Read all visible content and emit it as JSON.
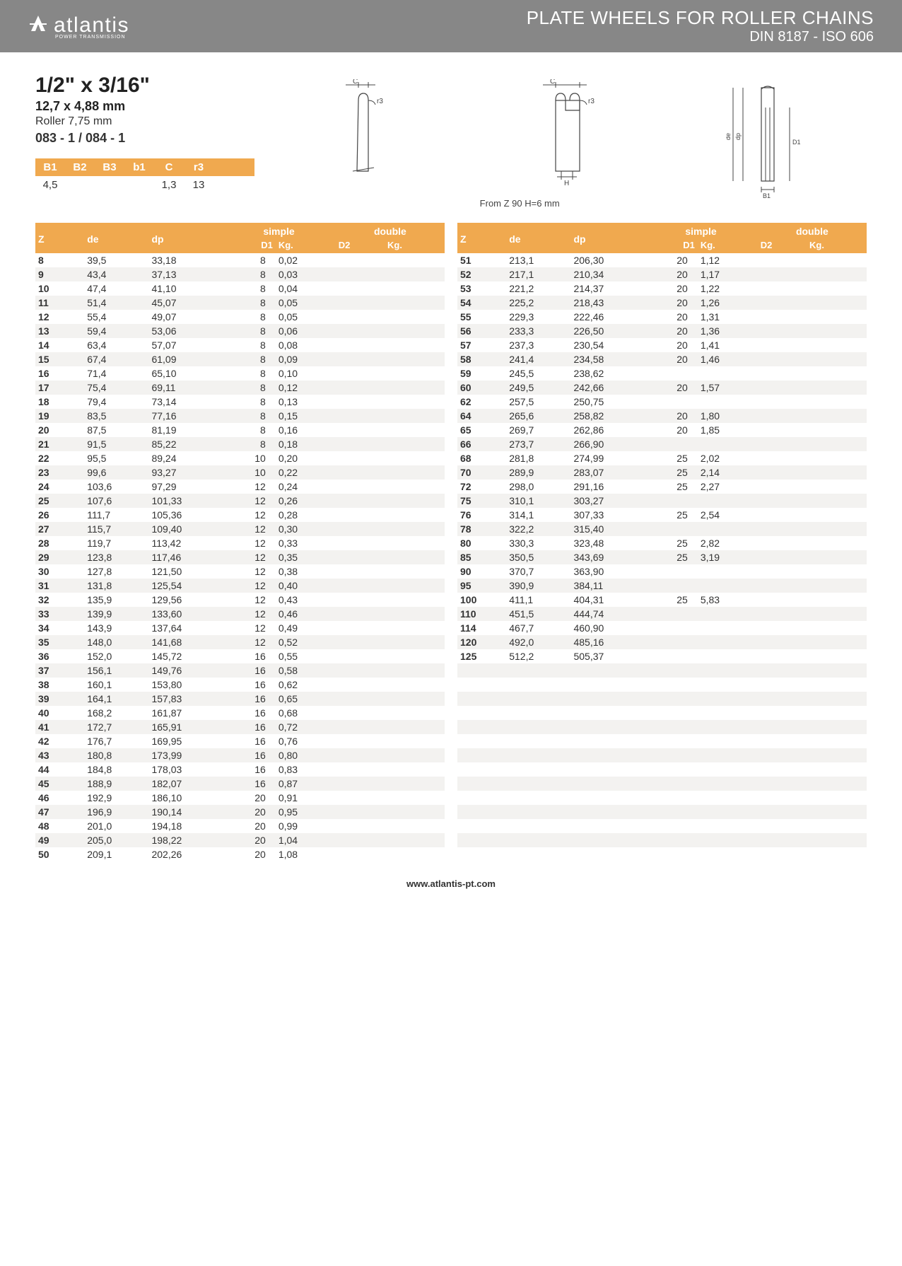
{
  "header": {
    "logo_text": "atlantis",
    "logo_sub": "POWER TRANSMISSION",
    "title_line1": "PLATE WHEELS FOR ROLLER CHAINS",
    "title_line2": "DIN 8187 - ISO 606"
  },
  "product": {
    "title": "1/2\" x 3/16\"",
    "sub1": "12,7 x 4,88 mm",
    "sub2": "Roller 7,75 mm",
    "sub3": "083 - 1 / 084 - 1"
  },
  "params": {
    "headers": [
      "B1",
      "B2",
      "B3",
      "b1",
      "C",
      "r3"
    ],
    "values": [
      "4,5",
      "",
      "",
      "",
      "1,3",
      "13"
    ]
  },
  "diagram_note": "From Z 90 H=6 mm",
  "table_headers": {
    "z": "Z",
    "de": "de",
    "dp": "dp",
    "simple": "simple",
    "double": "double",
    "d1": "D1",
    "kg": "Kg.",
    "d2": "D2",
    "kg2": "Kg."
  },
  "left_rows": [
    {
      "z": "8",
      "de": "39,5",
      "dp": "33,18",
      "d1": "8",
      "kg": "0,02"
    },
    {
      "z": "9",
      "de": "43,4",
      "dp": "37,13",
      "d1": "8",
      "kg": "0,03"
    },
    {
      "z": "10",
      "de": "47,4",
      "dp": "41,10",
      "d1": "8",
      "kg": "0,04"
    },
    {
      "z": "11",
      "de": "51,4",
      "dp": "45,07",
      "d1": "8",
      "kg": "0,05"
    },
    {
      "z": "12",
      "de": "55,4",
      "dp": "49,07",
      "d1": "8",
      "kg": "0,05"
    },
    {
      "z": "13",
      "de": "59,4",
      "dp": "53,06",
      "d1": "8",
      "kg": "0,06"
    },
    {
      "z": "14",
      "de": "63,4",
      "dp": "57,07",
      "d1": "8",
      "kg": "0,08"
    },
    {
      "z": "15",
      "de": "67,4",
      "dp": "61,09",
      "d1": "8",
      "kg": "0,09"
    },
    {
      "z": "16",
      "de": "71,4",
      "dp": "65,10",
      "d1": "8",
      "kg": "0,10"
    },
    {
      "z": "17",
      "de": "75,4",
      "dp": "69,11",
      "d1": "8",
      "kg": "0,12"
    },
    {
      "z": "18",
      "de": "79,4",
      "dp": "73,14",
      "d1": "8",
      "kg": "0,13"
    },
    {
      "z": "19",
      "de": "83,5",
      "dp": "77,16",
      "d1": "8",
      "kg": "0,15"
    },
    {
      "z": "20",
      "de": "87,5",
      "dp": "81,19",
      "d1": "8",
      "kg": "0,16"
    },
    {
      "z": "21",
      "de": "91,5",
      "dp": "85,22",
      "d1": "8",
      "kg": "0,18"
    },
    {
      "z": "22",
      "de": "95,5",
      "dp": "89,24",
      "d1": "10",
      "kg": "0,20"
    },
    {
      "z": "23",
      "de": "99,6",
      "dp": "93,27",
      "d1": "10",
      "kg": "0,22"
    },
    {
      "z": "24",
      "de": "103,6",
      "dp": "97,29",
      "d1": "12",
      "kg": "0,24"
    },
    {
      "z": "25",
      "de": "107,6",
      "dp": "101,33",
      "d1": "12",
      "kg": "0,26"
    },
    {
      "z": "26",
      "de": "111,7",
      "dp": "105,36",
      "d1": "12",
      "kg": "0,28"
    },
    {
      "z": "27",
      "de": "115,7",
      "dp": "109,40",
      "d1": "12",
      "kg": "0,30"
    },
    {
      "z": "28",
      "de": "119,7",
      "dp": "113,42",
      "d1": "12",
      "kg": "0,33"
    },
    {
      "z": "29",
      "de": "123,8",
      "dp": "117,46",
      "d1": "12",
      "kg": "0,35"
    },
    {
      "z": "30",
      "de": "127,8",
      "dp": "121,50",
      "d1": "12",
      "kg": "0,38"
    },
    {
      "z": "31",
      "de": "131,8",
      "dp": "125,54",
      "d1": "12",
      "kg": "0,40"
    },
    {
      "z": "32",
      "de": "135,9",
      "dp": "129,56",
      "d1": "12",
      "kg": "0,43"
    },
    {
      "z": "33",
      "de": "139,9",
      "dp": "133,60",
      "d1": "12",
      "kg": "0,46"
    },
    {
      "z": "34",
      "de": "143,9",
      "dp": "137,64",
      "d1": "12",
      "kg": "0,49"
    },
    {
      "z": "35",
      "de": "148,0",
      "dp": "141,68",
      "d1": "12",
      "kg": "0,52"
    },
    {
      "z": "36",
      "de": "152,0",
      "dp": "145,72",
      "d1": "16",
      "kg": "0,55"
    },
    {
      "z": "37",
      "de": "156,1",
      "dp": "149,76",
      "d1": "16",
      "kg": "0,58"
    },
    {
      "z": "38",
      "de": "160,1",
      "dp": "153,80",
      "d1": "16",
      "kg": "0,62"
    },
    {
      "z": "39",
      "de": "164,1",
      "dp": "157,83",
      "d1": "16",
      "kg": "0,65"
    },
    {
      "z": "40",
      "de": "168,2",
      "dp": "161,87",
      "d1": "16",
      "kg": "0,68"
    },
    {
      "z": "41",
      "de": "172,7",
      "dp": "165,91",
      "d1": "16",
      "kg": "0,72"
    },
    {
      "z": "42",
      "de": "176,7",
      "dp": "169,95",
      "d1": "16",
      "kg": "0,76"
    },
    {
      "z": "43",
      "de": "180,8",
      "dp": "173,99",
      "d1": "16",
      "kg": "0,80"
    },
    {
      "z": "44",
      "de": "184,8",
      "dp": "178,03",
      "d1": "16",
      "kg": "0,83"
    },
    {
      "z": "45",
      "de": "188,9",
      "dp": "182,07",
      "d1": "16",
      "kg": "0,87"
    },
    {
      "z": "46",
      "de": "192,9",
      "dp": "186,10",
      "d1": "20",
      "kg": "0,91"
    },
    {
      "z": "47",
      "de": "196,9",
      "dp": "190,14",
      "d1": "20",
      "kg": "0,95"
    },
    {
      "z": "48",
      "de": "201,0",
      "dp": "194,18",
      "d1": "20",
      "kg": "0,99"
    },
    {
      "z": "49",
      "de": "205,0",
      "dp": "198,22",
      "d1": "20",
      "kg": "1,04"
    },
    {
      "z": "50",
      "de": "209,1",
      "dp": "202,26",
      "d1": "20",
      "kg": "1,08"
    }
  ],
  "right_rows": [
    {
      "z": "51",
      "de": "213,1",
      "dp": "206,30",
      "d1": "20",
      "kg": "1,12"
    },
    {
      "z": "52",
      "de": "217,1",
      "dp": "210,34",
      "d1": "20",
      "kg": "1,17"
    },
    {
      "z": "53",
      "de": "221,2",
      "dp": "214,37",
      "d1": "20",
      "kg": "1,22"
    },
    {
      "z": "54",
      "de": "225,2",
      "dp": "218,43",
      "d1": "20",
      "kg": "1,26"
    },
    {
      "z": "55",
      "de": "229,3",
      "dp": "222,46",
      "d1": "20",
      "kg": "1,31"
    },
    {
      "z": "56",
      "de": "233,3",
      "dp": "226,50",
      "d1": "20",
      "kg": "1,36"
    },
    {
      "z": "57",
      "de": "237,3",
      "dp": "230,54",
      "d1": "20",
      "kg": "1,41"
    },
    {
      "z": "58",
      "de": "241,4",
      "dp": "234,58",
      "d1": "20",
      "kg": "1,46"
    },
    {
      "z": "59",
      "de": "245,5",
      "dp": "238,62",
      "d1": "",
      "kg": ""
    },
    {
      "z": "60",
      "de": "249,5",
      "dp": "242,66",
      "d1": "20",
      "kg": "1,57"
    },
    {
      "z": "62",
      "de": "257,5",
      "dp": "250,75",
      "d1": "",
      "kg": ""
    },
    {
      "z": "64",
      "de": "265,6",
      "dp": "258,82",
      "d1": "20",
      "kg": "1,80"
    },
    {
      "z": "65",
      "de": "269,7",
      "dp": "262,86",
      "d1": "20",
      "kg": "1,85"
    },
    {
      "z": "66",
      "de": "273,7",
      "dp": "266,90",
      "d1": "",
      "kg": ""
    },
    {
      "z": "68",
      "de": "281,8",
      "dp": "274,99",
      "d1": "25",
      "kg": "2,02"
    },
    {
      "z": "70",
      "de": "289,9",
      "dp": "283,07",
      "d1": "25",
      "kg": "2,14"
    },
    {
      "z": "72",
      "de": "298,0",
      "dp": "291,16",
      "d1": "25",
      "kg": "2,27"
    },
    {
      "z": "75",
      "de": "310,1",
      "dp": "303,27",
      "d1": "",
      "kg": ""
    },
    {
      "z": "76",
      "de": "314,1",
      "dp": "307,33",
      "d1": "25",
      "kg": "2,54"
    },
    {
      "z": "78",
      "de": "322,2",
      "dp": "315,40",
      "d1": "",
      "kg": ""
    },
    {
      "z": "80",
      "de": "330,3",
      "dp": "323,48",
      "d1": "25",
      "kg": "2,82"
    },
    {
      "z": "85",
      "de": "350,5",
      "dp": "343,69",
      "d1": "25",
      "kg": "3,19"
    },
    {
      "z": "90",
      "de": "370,7",
      "dp": "363,90",
      "d1": "",
      "kg": ""
    },
    {
      "z": "95",
      "de": "390,9",
      "dp": "384,11",
      "d1": "",
      "kg": ""
    },
    {
      "z": "100",
      "de": "411,1",
      "dp": "404,31",
      "d1": "25",
      "kg": "5,83"
    },
    {
      "z": "110",
      "de": "451,5",
      "dp": "444,74",
      "d1": "",
      "kg": ""
    },
    {
      "z": "114",
      "de": "467,7",
      "dp": "460,90",
      "d1": "",
      "kg": ""
    },
    {
      "z": "120",
      "de": "492,0",
      "dp": "485,16",
      "d1": "",
      "kg": ""
    },
    {
      "z": "125",
      "de": "512,2",
      "dp": "505,37",
      "d1": "",
      "kg": ""
    },
    {
      "blank": true
    },
    {
      "blank": true
    },
    {
      "blank": true
    },
    {
      "blank": true
    },
    {
      "blank": true
    },
    {
      "blank": true
    },
    {
      "blank": true
    },
    {
      "blank": true
    },
    {
      "blank": true
    },
    {
      "blank": true
    },
    {
      "blank": true
    },
    {
      "blank": true
    },
    {
      "blank": true
    },
    {
      "blank": true
    }
  ],
  "footer": "www.atlantis-pt.com",
  "colors": {
    "header_bg": "#878787",
    "accent": "#f0a94f",
    "row_alt": "#f3f2f0"
  }
}
